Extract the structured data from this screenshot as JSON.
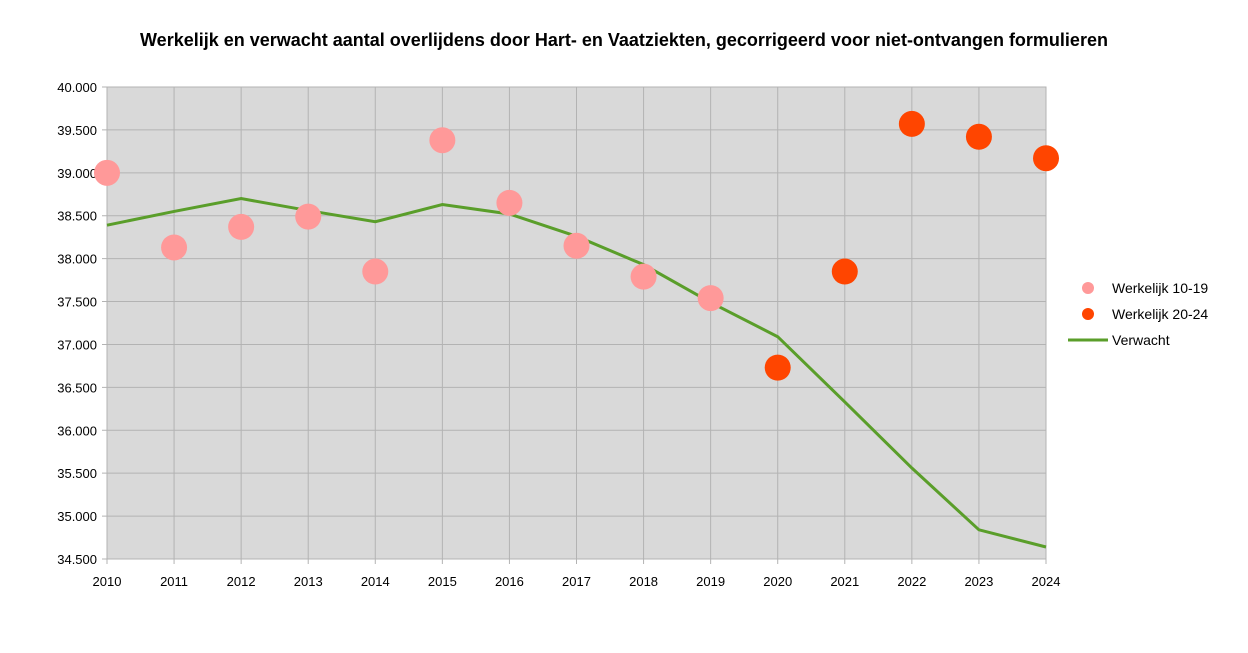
{
  "chart_data": {
    "type": "scatter",
    "title": "Werkelijk en verwacht aantal overlijdens door Hart- en Vaatziekten, gecorrigeerd voor niet-ontvangen formulieren",
    "xlabel": "",
    "ylabel": "",
    "x_ticks": [
      "2010",
      "2011",
      "2012",
      "2013",
      "2014",
      "2015",
      "2016",
      "2017",
      "2018",
      "2019",
      "2020",
      "2021",
      "2022",
      "2023",
      "2024"
    ],
    "y_ticks": [
      "34.500",
      "35.000",
      "35.500",
      "36.000",
      "36.500",
      "37.000",
      "37.500",
      "38.000",
      "38.500",
      "39.000",
      "39.500",
      "40.000"
    ],
    "y_tick_values": [
      34500,
      35000,
      35500,
      36000,
      36500,
      37000,
      37500,
      38000,
      38500,
      39000,
      39500,
      40000
    ],
    "xlim": [
      2010,
      2024
    ],
    "ylim": [
      34500,
      40000
    ],
    "grid": true,
    "legend_position": "right",
    "plot_background": "#d9d9d9",
    "series": [
      {
        "name": "Werkelijk 10-19",
        "kind": "scatter",
        "color": "#ff9999",
        "x": [
          2010,
          2011,
          2012,
          2013,
          2014,
          2015,
          2016,
          2017,
          2018,
          2019
        ],
        "values": [
          39000,
          38130,
          38370,
          38490,
          37850,
          39380,
          38650,
          38150,
          37790,
          37540
        ]
      },
      {
        "name": "Werkelijk 20-24",
        "kind": "scatter",
        "color": "#ff4500",
        "x": [
          2020,
          2021,
          2022,
          2023,
          2024
        ],
        "values": [
          36730,
          37850,
          39570,
          39420,
          39170
        ]
      },
      {
        "name": "Verwacht",
        "kind": "line",
        "color": "#5a9e2a",
        "x": [
          2010,
          2011,
          2012,
          2013,
          2014,
          2015,
          2016,
          2017,
          2018,
          2019,
          2020,
          2021,
          2022,
          2023,
          2024
        ],
        "values": [
          38390,
          38550,
          38700,
          38560,
          38430,
          38630,
          38520,
          38260,
          37930,
          37490,
          37090,
          36330,
          35560,
          34840,
          34640
        ]
      }
    ]
  }
}
